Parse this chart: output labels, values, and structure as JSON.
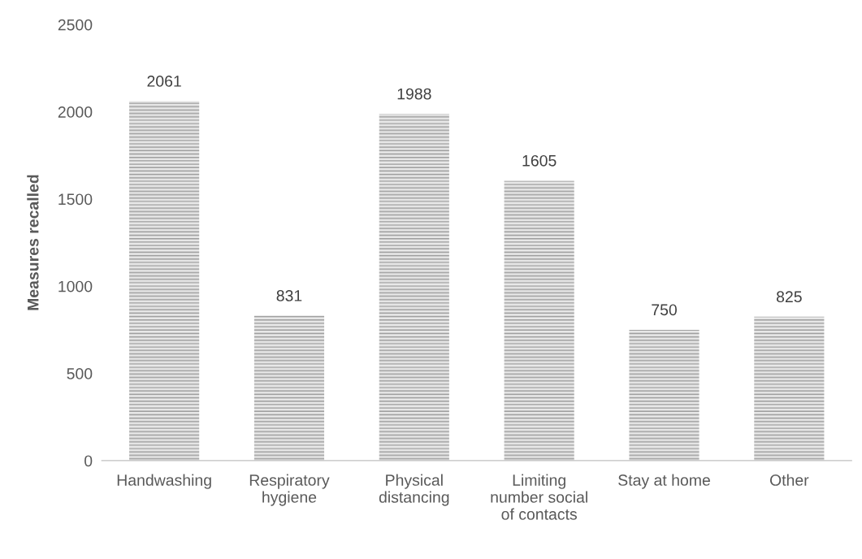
{
  "chart_data": {
    "type": "bar",
    "ylabel": "Measures recalled",
    "categories": [
      "Handwashing",
      "Respiratory\nhygiene",
      "Physical\ndistancing",
      "Limiting\nnumber social\nof contacts",
      "Stay at home",
      "Other"
    ],
    "values": [
      2061,
      831,
      1988,
      1605,
      750,
      825
    ],
    "color": "#9a9a9a",
    "ylim": [
      0,
      2500
    ],
    "yticks": [
      0,
      500,
      1000,
      1500,
      2000,
      2500
    ],
    "data_labels": true,
    "grid": false,
    "legend": false
  }
}
